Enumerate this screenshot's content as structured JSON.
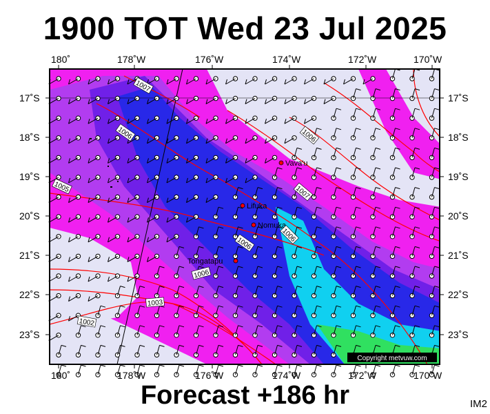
{
  "header": {
    "title": "1900 TOT Wed 23 Jul 2025"
  },
  "footer": {
    "forecast": "Forecast +186 hr",
    "badge": "IM2"
  },
  "map": {
    "lon_labels": [
      "180˚",
      "178˚W",
      "176˚W",
      "174˚W",
      "172˚W",
      "170˚W"
    ],
    "lat_labels": [
      "17˚S",
      "18˚S",
      "19˚S",
      "20˚S",
      "21˚S",
      "22˚S",
      "23˚S"
    ],
    "places": [
      {
        "name": "Vava'u"
      },
      {
        "name": "Lifuka"
      },
      {
        "name": "Nomuka"
      },
      {
        "name": "Tongatapu"
      }
    ],
    "isobar_labels": [
      "1007",
      "1006",
      "1005",
      "1006",
      "1007",
      "1006",
      "1006",
      "1006",
      "1003",
      "1002"
    ],
    "copyright": "Copyright metvuw.com",
    "colors": {
      "light": "#e4e4f6",
      "magenta": "#f020f0",
      "violet": "#b23cf0",
      "purple": "#7020e8",
      "blue": "#2828e8",
      "cyan": "#10d0f0",
      "green": "#30e060",
      "isobar": "#ff0000"
    }
  }
}
